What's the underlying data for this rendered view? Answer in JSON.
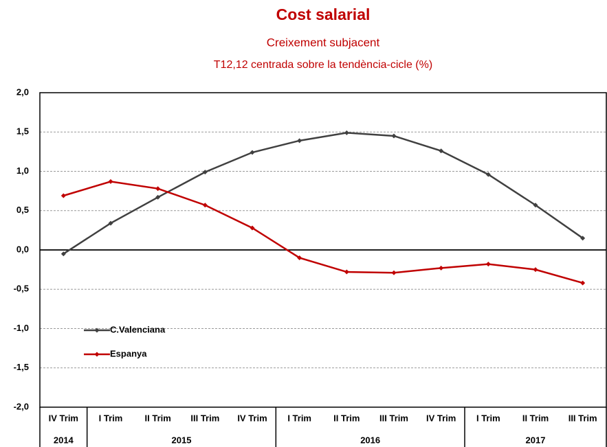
{
  "chart_data": {
    "type": "line",
    "title": "Cost salarial",
    "subtitle": "Creixement  subjacent",
    "subtitle2": "T12,12 centrada sobre la tendència-cicle (%)",
    "categories": [
      "IV Trim",
      "I Trim",
      "II Trim",
      "III Trim",
      "IV Trim",
      "I Trim",
      "II Trim",
      "III Trim",
      "IV Trim",
      "I Trim",
      "II Trim",
      "III Trim"
    ],
    "category_groups": [
      {
        "label": "2014",
        "count": 1
      },
      {
        "label": "2015",
        "count": 4
      },
      {
        "label": "2016",
        "count": 4
      },
      {
        "label": "2017",
        "count": 3
      }
    ],
    "series": [
      {
        "name": "C.Valenciana",
        "color": "#404040",
        "values": [
          -0.05,
          0.34,
          0.67,
          0.99,
          1.24,
          1.39,
          1.49,
          1.45,
          1.26,
          0.96,
          0.57,
          0.15
        ]
      },
      {
        "name": "Espanya",
        "color": "#c00000",
        "values": [
          0.69,
          0.87,
          0.78,
          0.57,
          0.28,
          -0.1,
          -0.28,
          -0.29,
          -0.23,
          -0.18,
          -0.25,
          -0.42
        ]
      }
    ],
    "ylim": [
      -2,
      2
    ],
    "yticks": [
      {
        "value": -2,
        "label": "-2,0"
      },
      {
        "value": -1.5,
        "label": "-1,5"
      },
      {
        "value": -1,
        "label": "-1,0"
      },
      {
        "value": -0.5,
        "label": "-0,5"
      },
      {
        "value": 0,
        "label": "0,0"
      },
      {
        "value": 0.5,
        "label": "0,5"
      },
      {
        "value": 1,
        "label": "1,0"
      },
      {
        "value": 1.5,
        "label": "1,5"
      },
      {
        "value": 2,
        "label": "2,0"
      }
    ],
    "grid": true,
    "legend_position": "left"
  }
}
